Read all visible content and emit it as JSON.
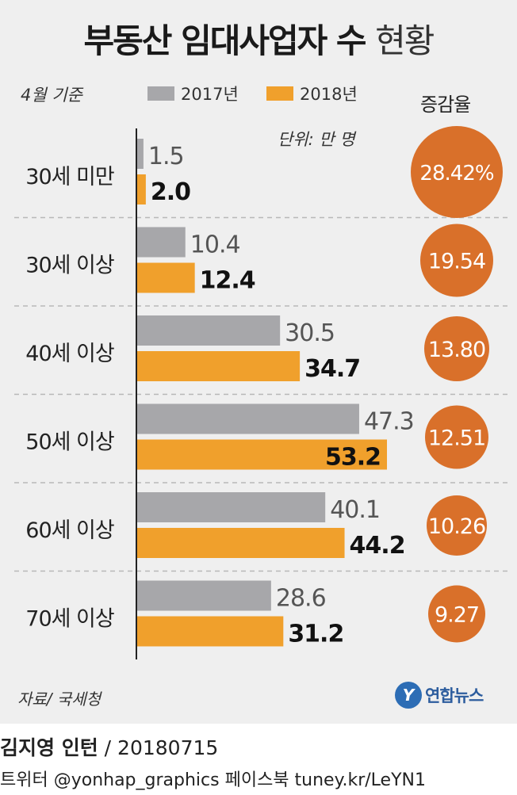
{
  "title_main": "부동산 임대사업자 수",
  "title_sub": "현황",
  "basis": "4월 기준",
  "legend_2017": "2017년",
  "legend_2018": "2018년",
  "rate_header": "증감율",
  "unit": "단위: 만 명",
  "source": "자료/ 국세청",
  "logo_text": "연합뉴스",
  "credit_name": "김지영 인턴",
  "credit_date": " / 20180715",
  "social": "트위터 @yonhap_graphics  페이스북 tuney.kr/LeYN1",
  "colors": {
    "s2017": "#a7a7aa",
    "s2018": "#f0a02c",
    "circle": "#d9702a",
    "panel": "#efefef"
  },
  "chart_data": {
    "type": "bar",
    "orientation": "horizontal",
    "categories": [
      "30세 미만",
      "30세 이상",
      "40세 이상",
      "50세 이상",
      "60세 이상",
      "70세 이상"
    ],
    "series": [
      {
        "name": "2017년",
        "values": [
          1.5,
          10.4,
          30.5,
          47.3,
          40.1,
          28.6
        ],
        "labels": [
          "1.5",
          "10.4",
          "30.5",
          "47.3",
          "40.1",
          "28.6"
        ]
      },
      {
        "name": "2018년",
        "values": [
          2.0,
          12.4,
          34.7,
          53.2,
          44.2,
          31.2
        ],
        "labels": [
          "2.0",
          "12.4",
          "34.7",
          "53.2",
          "44.2",
          "31.2"
        ]
      }
    ],
    "change_rate": [
      28.42,
      19.54,
      13.8,
      12.51,
      10.26,
      9.27
    ],
    "change_rate_labels": [
      "28.42%",
      "19.54",
      "13.80",
      "12.51",
      "10.26",
      "9.27"
    ],
    "xlim": [
      0,
      60
    ],
    "grid": false
  }
}
